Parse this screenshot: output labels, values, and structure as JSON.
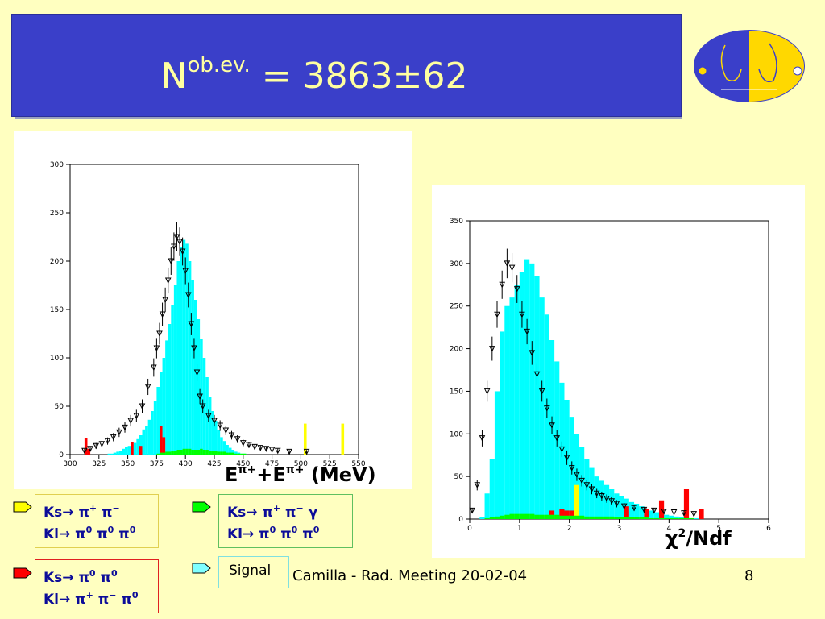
{
  "title": {
    "main": "N",
    "sup": "ob.ev.",
    "rest": " = 3863±62"
  },
  "footer": "Camilla - Rad. Meeting 20-02-04",
  "page_number": "8",
  "colors": {
    "signal": "#00ffff",
    "bkg_yellow": "#ffff00",
    "bkg_green": "#00ff00",
    "bkg_red": "#ff0000",
    "data": "#000000"
  },
  "legend": [
    {
      "color": "#ffff00",
      "line1": "Ks→ π+ π−",
      "line2": "Kl→ π0 π0 π0"
    },
    {
      "color": "#00ff00",
      "line1": "Ks→ π+ π− γ",
      "line2": "Kl→ π0 π0 π0"
    },
    {
      "color": "#ff0000",
      "line1": "Ks→ π0 π0",
      "line2": "Kl→ π+ π− π0"
    },
    {
      "color": "#80ffff",
      "line1": "Signal"
    }
  ],
  "chart_data": [
    {
      "type": "bar",
      "xlabel": "Eπ+ +Eπ+ (MeV)",
      "xlim": [
        300,
        550
      ],
      "ylim": [
        0,
        300
      ],
      "xticks": [
        300,
        325,
        350,
        375,
        400,
        425,
        450,
        475,
        500,
        525,
        550
      ],
      "yticks": [
        0,
        50,
        100,
        150,
        200,
        250,
        300
      ],
      "bin_start": 300,
      "bin_width": 2.5,
      "signal": [
        0,
        0,
        0,
        0,
        0,
        0,
        0,
        0,
        0,
        0,
        0,
        0,
        0,
        1,
        1,
        2,
        3,
        4,
        6,
        8,
        9,
        10,
        12,
        16,
        20,
        26,
        30,
        36,
        45,
        55,
        70,
        85,
        100,
        118,
        135,
        155,
        175,
        200,
        215,
        222,
        218,
        200,
        180,
        160,
        140,
        120,
        100,
        80,
        60,
        45,
        35,
        25,
        18,
        14,
        10,
        7,
        5,
        3,
        2,
        1,
        1,
        0,
        0,
        0,
        0,
        0,
        0,
        0,
        0,
        0,
        0,
        0,
        0,
        0,
        0,
        0,
        0,
        0,
        0,
        0,
        0,
        0,
        0,
        0,
        0,
        0,
        0,
        0,
        0,
        0,
        0,
        0,
        0,
        0,
        0,
        0,
        0,
        0,
        0,
        0
      ],
      "green": [
        0,
        0,
        0,
        0,
        0,
        0,
        0,
        0,
        0,
        0,
        0,
        0,
        0,
        0,
        0,
        0,
        0,
        0,
        0,
        0,
        0,
        0,
        0,
        0,
        0,
        0,
        0,
        0,
        0,
        0,
        1,
        2,
        2,
        3,
        3,
        4,
        4,
        5,
        5,
        6,
        6,
        6,
        5,
        5,
        5,
        6,
        5,
        5,
        4,
        4,
        4,
        3,
        3,
        3,
        2,
        2,
        2,
        1,
        1,
        1,
        1,
        0,
        0,
        0,
        0,
        0,
        0,
        0,
        0,
        0,
        0,
        0,
        0,
        0,
        0,
        0,
        0,
        0,
        0,
        0,
        0,
        0,
        0,
        0,
        0,
        0,
        0,
        0,
        0,
        0,
        0,
        0,
        0,
        0,
        0,
        0,
        0,
        0,
        0,
        0
      ],
      "red": [
        0,
        0,
        0,
        0,
        0,
        17,
        6,
        0,
        0,
        0,
        0,
        0,
        0,
        0,
        0,
        0,
        0,
        0,
        0,
        0,
        0,
        13,
        0,
        0,
        9,
        0,
        0,
        0,
        0,
        0,
        0,
        30,
        18,
        0,
        0,
        0,
        0,
        0,
        0,
        0,
        0,
        0,
        0,
        0,
        0,
        0,
        0,
        0,
        0,
        0,
        0,
        0,
        0,
        0,
        0,
        0,
        0,
        0,
        0,
        0,
        0,
        0,
        0,
        0,
        0,
        0,
        0,
        0,
        0,
        0,
        0,
        0,
        0,
        0,
        0,
        0,
        0,
        0,
        0,
        0,
        0,
        0,
        0,
        0,
        0,
        0,
        0,
        0,
        0,
        0,
        0,
        0,
        0,
        0,
        0,
        0,
        0,
        0,
        0,
        0
      ],
      "yellow": [
        0,
        0,
        0,
        0,
        0,
        0,
        0,
        0,
        0,
        0,
        0,
        0,
        0,
        0,
        0,
        0,
        0,
        0,
        0,
        0,
        0,
        0,
        0,
        0,
        0,
        0,
        0,
        0,
        0,
        0,
        0,
        0,
        0,
        0,
        0,
        0,
        0,
        0,
        0,
        0,
        0,
        0,
        0,
        0,
        0,
        0,
        0,
        0,
        0,
        0,
        0,
        0,
        0,
        0,
        0,
        0,
        0,
        0,
        0,
        0,
        0,
        0,
        0,
        0,
        0,
        0,
        0,
        0,
        0,
        0,
        0,
        0,
        0,
        0,
        0,
        0,
        0,
        0,
        0,
        0,
        0,
        32,
        0,
        0,
        0,
        0,
        0,
        0,
        0,
        0,
        0,
        0,
        0,
        0,
        32,
        0,
        0,
        0,
        0,
        0
      ],
      "data": [
        {
          "x": 312.5,
          "y": 4
        },
        {
          "x": 317.5,
          "y": 6
        },
        {
          "x": 322.5,
          "y": 9
        },
        {
          "x": 327.5,
          "y": 11
        },
        {
          "x": 332.5,
          "y": 14
        },
        {
          "x": 337.5,
          "y": 18
        },
        {
          "x": 342.5,
          "y": 23
        },
        {
          "x": 347.5,
          "y": 28
        },
        {
          "x": 352.5,
          "y": 35
        },
        {
          "x": 357.5,
          "y": 40
        },
        {
          "x": 362.5,
          "y": 50
        },
        {
          "x": 367.5,
          "y": 70
        },
        {
          "x": 372.5,
          "y": 90
        },
        {
          "x": 375,
          "y": 110
        },
        {
          "x": 377.5,
          "y": 125
        },
        {
          "x": 380,
          "y": 145
        },
        {
          "x": 382.5,
          "y": 160
        },
        {
          "x": 385,
          "y": 180
        },
        {
          "x": 387.5,
          "y": 200
        },
        {
          "x": 390,
          "y": 215
        },
        {
          "x": 392.5,
          "y": 225
        },
        {
          "x": 395,
          "y": 220
        },
        {
          "x": 397.5,
          "y": 210
        },
        {
          "x": 400,
          "y": 190
        },
        {
          "x": 402.5,
          "y": 165
        },
        {
          "x": 405,
          "y": 135
        },
        {
          "x": 407.5,
          "y": 110
        },
        {
          "x": 410,
          "y": 85
        },
        {
          "x": 412.5,
          "y": 60
        },
        {
          "x": 415,
          "y": 50
        },
        {
          "x": 420,
          "y": 40
        },
        {
          "x": 425,
          "y": 35
        },
        {
          "x": 430,
          "y": 30
        },
        {
          "x": 435,
          "y": 25
        },
        {
          "x": 440,
          "y": 20
        },
        {
          "x": 445,
          "y": 16
        },
        {
          "x": 450,
          "y": 12
        },
        {
          "x": 455,
          "y": 10
        },
        {
          "x": 460,
          "y": 8
        },
        {
          "x": 465,
          "y": 7
        },
        {
          "x": 470,
          "y": 6
        },
        {
          "x": 475,
          "y": 5
        },
        {
          "x": 480,
          "y": 4
        },
        {
          "x": 490,
          "y": 3
        },
        {
          "x": 505,
          "y": 3
        }
      ]
    },
    {
      "type": "bar",
      "xlabel": "χ2/Ndf",
      "xlim": [
        0,
        6
      ],
      "ylim": [
        0,
        350
      ],
      "xticks": [
        0,
        1,
        2,
        3,
        4,
        5,
        6
      ],
      "yticks": [
        0,
        50,
        100,
        150,
        200,
        250,
        300,
        350
      ],
      "bin_start": 0,
      "bin_width": 0.1,
      "signal": [
        0,
        0,
        2,
        30,
        70,
        150,
        220,
        250,
        260,
        275,
        290,
        305,
        300,
        285,
        260,
        240,
        210,
        185,
        160,
        140,
        120,
        100,
        85,
        70,
        60,
        50,
        45,
        40,
        35,
        30,
        27,
        24,
        20,
        18,
        15,
        12,
        10,
        8,
        6,
        5,
        4,
        3,
        2,
        2,
        1,
        1,
        0,
        0,
        0,
        0,
        0,
        0,
        0,
        0,
        0,
        0,
        0,
        0,
        0,
        0
      ],
      "green": [
        0,
        0,
        0,
        1,
        2,
        3,
        4,
        5,
        6,
        6,
        6,
        6,
        6,
        5,
        5,
        5,
        5,
        5,
        4,
        4,
        4,
        4,
        4,
        3,
        3,
        3,
        3,
        3,
        3,
        2,
        2,
        2,
        2,
        2,
        2,
        2,
        1,
        1,
        1,
        1,
        1,
        1,
        1,
        1,
        1,
        0,
        0,
        0,
        0,
        0,
        0,
        0,
        0,
        0,
        0,
        0,
        0,
        0,
        0,
        0
      ],
      "red": [
        0,
        0,
        0,
        0,
        0,
        0,
        0,
        0,
        0,
        0,
        0,
        0,
        0,
        0,
        0,
        0,
        10,
        0,
        12,
        10,
        10,
        0,
        0,
        0,
        0,
        0,
        0,
        0,
        0,
        0,
        0,
        15,
        0,
        0,
        0,
        12,
        0,
        0,
        22,
        0,
        0,
        0,
        0,
        35,
        0,
        0,
        12,
        0,
        0,
        0,
        0,
        0,
        0,
        0,
        0,
        0,
        0,
        0,
        0,
        0
      ],
      "yellow": [
        0,
        0,
        0,
        0,
        0,
        0,
        0,
        0,
        0,
        0,
        0,
        0,
        0,
        0,
        0,
        0,
        0,
        0,
        0,
        0,
        0,
        40,
        0,
        0,
        0,
        0,
        0,
        0,
        0,
        0,
        0,
        0,
        0,
        0,
        0,
        0,
        0,
        0,
        0,
        0,
        0,
        0,
        0,
        0,
        0,
        0,
        0,
        0,
        0,
        0,
        0,
        0,
        0,
        0,
        0,
        0,
        0,
        0,
        0,
        0
      ],
      "data": [
        {
          "x": 0.05,
          "y": 10
        },
        {
          "x": 0.15,
          "y": 40
        },
        {
          "x": 0.25,
          "y": 95
        },
        {
          "x": 0.35,
          "y": 150
        },
        {
          "x": 0.45,
          "y": 200
        },
        {
          "x": 0.55,
          "y": 240
        },
        {
          "x": 0.65,
          "y": 275
        },
        {
          "x": 0.75,
          "y": 300
        },
        {
          "x": 0.85,
          "y": 295
        },
        {
          "x": 0.95,
          "y": 270
        },
        {
          "x": 1.05,
          "y": 240
        },
        {
          "x": 1.15,
          "y": 220
        },
        {
          "x": 1.25,
          "y": 195
        },
        {
          "x": 1.35,
          "y": 170
        },
        {
          "x": 1.45,
          "y": 150
        },
        {
          "x": 1.55,
          "y": 130
        },
        {
          "x": 1.65,
          "y": 110
        },
        {
          "x": 1.75,
          "y": 95
        },
        {
          "x": 1.85,
          "y": 82
        },
        {
          "x": 1.95,
          "y": 72
        },
        {
          "x": 2.05,
          "y": 60
        },
        {
          "x": 2.15,
          "y": 52
        },
        {
          "x": 2.25,
          "y": 45
        },
        {
          "x": 2.35,
          "y": 40
        },
        {
          "x": 2.45,
          "y": 35
        },
        {
          "x": 2.55,
          "y": 30
        },
        {
          "x": 2.65,
          "y": 27
        },
        {
          "x": 2.75,
          "y": 24
        },
        {
          "x": 2.85,
          "y": 21
        },
        {
          "x": 2.95,
          "y": 18
        },
        {
          "x": 3.1,
          "y": 15
        },
        {
          "x": 3.3,
          "y": 13
        },
        {
          "x": 3.5,
          "y": 11
        },
        {
          "x": 3.7,
          "y": 10
        },
        {
          "x": 3.9,
          "y": 9
        },
        {
          "x": 4.1,
          "y": 8
        },
        {
          "x": 4.3,
          "y": 7
        },
        {
          "x": 4.5,
          "y": 6
        }
      ]
    }
  ]
}
